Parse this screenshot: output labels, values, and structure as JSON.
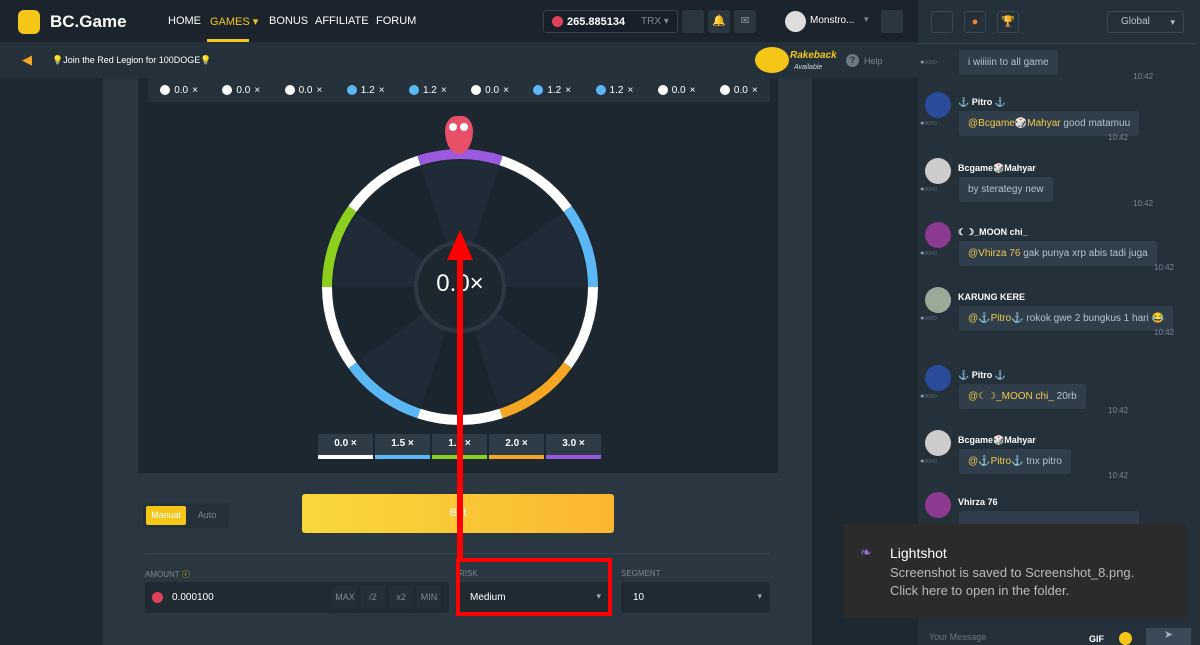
{
  "header": {
    "logo": "BC.Game",
    "nav": [
      "HOME",
      "GAMES",
      "BONUS",
      "AFFILIATE",
      "FORUM"
    ],
    "active": "GAMES",
    "balance": "265.885134",
    "currency": "TRX",
    "user": "Monstro..."
  },
  "subbar": {
    "announcement": "💡Join the Red Legion for 100DOGE💡",
    "rakeback": "Rakeback",
    "rakeback_status": "Available",
    "help": "Help"
  },
  "history": [
    {
      "v": "0.0",
      "c": "#ffffff"
    },
    {
      "v": "0.0",
      "c": "#ffffff"
    },
    {
      "v": "0.0",
      "c": "#ffffff"
    },
    {
      "v": "1.2",
      "c": "#5cb8f5"
    },
    {
      "v": "1.2",
      "c": "#5cb8f5"
    },
    {
      "v": "0.0",
      "c": "#ffffff"
    },
    {
      "v": "1.2",
      "c": "#5cb8f5"
    },
    {
      "v": "1.2",
      "c": "#5cb8f5"
    },
    {
      "v": "0.0",
      "c": "#ffffff"
    },
    {
      "v": "0.0",
      "c": "#ffffff"
    }
  ],
  "history_suffix": "×",
  "wheel": {
    "center": "0.0×",
    "segments": [
      "#9b59e0",
      "#ffffff",
      "#5cb8f5",
      "#ffffff",
      "#f5a623",
      "#ffffff",
      "#5cb8f5",
      "#ffffff",
      "#8ccf1e",
      "#ffffff"
    ]
  },
  "legend": [
    {
      "label": "0.0 ×",
      "c": "#ffffff"
    },
    {
      "label": "1.5 ×",
      "c": "#5cb8f5"
    },
    {
      "label": "1.7 ×",
      "c": "#8ccf1e"
    },
    {
      "label": "2.0 ×",
      "c": "#f5a623"
    },
    {
      "label": "3.0 ×",
      "c": "#9b59e0"
    }
  ],
  "controls": {
    "manual": "Manual",
    "auto": "Auto",
    "bet": "Bet",
    "amount_label": "AMOUNT",
    "amount": "0.000100",
    "max": "MAX",
    "half": "/2",
    "double": "x2",
    "min": "MIN",
    "risk_label": "RISK",
    "risk": "Medium",
    "segment_label": "SEGMENT",
    "segment": "10"
  },
  "chat": {
    "channel": "Global",
    "placeholder": "Your Message",
    "gif": "GIF",
    "messages": [
      {
        "name": "",
        "mention": "",
        "text": "i wiiiiin to all game",
        "time": "10:42"
      },
      {
        "name": "⚓ Pitro ⚓",
        "mention": "@Bcgame🎲Mahyar",
        "text": "good matamuu",
        "time": "10:42"
      },
      {
        "name": "Bcgame🎲Mahyar",
        "mention": "",
        "text": "by sterategy new",
        "time": "10:42"
      },
      {
        "name": "☾☽_MOON chi_",
        "mention": "@Vhirza 76",
        "text": "gak punya xrp abis tadi juga",
        "time": "10:42"
      },
      {
        "name": "KARUNG KERE",
        "mention": "@⚓Pitro⚓",
        "text": "rokok gwe 2 bungkus 1 hari 😂",
        "time": "10:42"
      },
      {
        "name": "⚓ Pitro ⚓",
        "mention": "@☾☽_MOON chi_",
        "text": "20rb",
        "time": "10:42"
      },
      {
        "name": "Bcgame🎲Mahyar",
        "mention": "@⚓Pitro⚓",
        "text": "tnx pitro",
        "time": "10:42"
      },
      {
        "name": "Vhirza 76",
        "mention": "",
        "text": "",
        "time": ""
      }
    ]
  },
  "toast": {
    "title": "Lightshot",
    "line1": "Screenshot is saved to Screenshot_8.png.",
    "line2": "Click here to open in the folder."
  },
  "annotation_color": "#ff0000"
}
